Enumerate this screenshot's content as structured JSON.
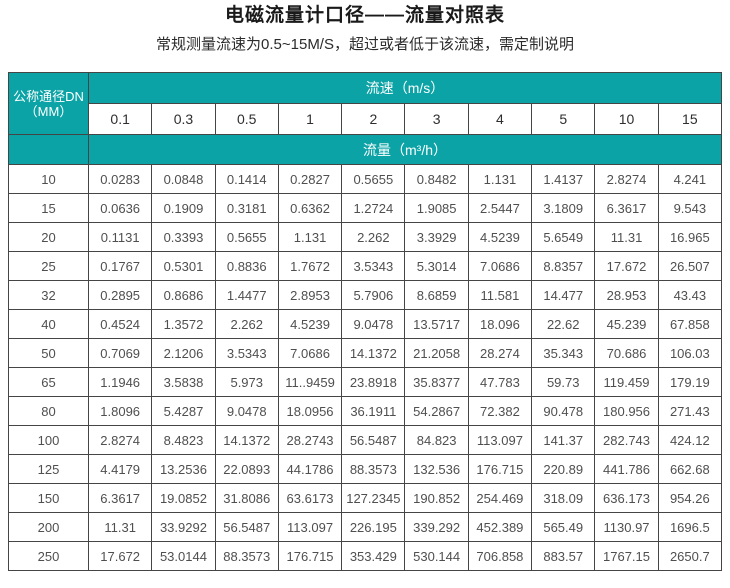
{
  "colors": {
    "header_teal": "#0ba3a6",
    "grid_border": "#454545",
    "body_text": "#4f4f4f"
  },
  "chart_data": {
    "type": "table",
    "title": "电磁流量计口径——流量对照表",
    "subtitle": "常规测量流速为0.5~15M/S，超过或者低于该流速，需定制说明",
    "corner_header_line1": "公称通径DN",
    "corner_header_line2": "（MM）",
    "speed_header": "流速（m/s）",
    "flow_header": "流量（m³/h）",
    "speeds": [
      "0.1",
      "0.3",
      "0.5",
      "1",
      "2",
      "3",
      "4",
      "5",
      "10",
      "15"
    ],
    "rows": [
      {
        "dn": "10",
        "values": [
          "0.0283",
          "0.0848",
          "0.1414",
          "0.2827",
          "0.5655",
          "0.8482",
          "1.131",
          "1.4137",
          "2.8274",
          "4.241"
        ]
      },
      {
        "dn": "15",
        "values": [
          "0.0636",
          "0.1909",
          "0.3181",
          "0.6362",
          "1.2724",
          "1.9085",
          "2.5447",
          "3.1809",
          "6.3617",
          "9.543"
        ]
      },
      {
        "dn": "20",
        "values": [
          "0.1131",
          "0.3393",
          "0.5655",
          "1.131",
          "2.262",
          "3.3929",
          "4.5239",
          "5.6549",
          "11.31",
          "16.965"
        ]
      },
      {
        "dn": "25",
        "values": [
          "0.1767",
          "0.5301",
          "0.8836",
          "1.7672",
          "3.5343",
          "5.3014",
          "7.0686",
          "8.8357",
          "17.672",
          "26.507"
        ]
      },
      {
        "dn": "32",
        "values": [
          "0.2895",
          "0.8686",
          "1.4477",
          "2.8953",
          "5.7906",
          "8.6859",
          "11.581",
          "14.477",
          "28.953",
          "43.43"
        ]
      },
      {
        "dn": "40",
        "values": [
          "0.4524",
          "1.3572",
          "2.262",
          "4.5239",
          "9.0478",
          "13.5717",
          "18.096",
          "22.62",
          "45.239",
          "67.858"
        ]
      },
      {
        "dn": "50",
        "values": [
          "0.7069",
          "2.1206",
          "3.5343",
          "7.0686",
          "14.1372",
          "21.2058",
          "28.274",
          "35.343",
          "70.686",
          "106.03"
        ]
      },
      {
        "dn": "65",
        "values": [
          "1.1946",
          "3.5838",
          "5.973",
          "11..9459",
          "23.8918",
          "35.8377",
          "47.783",
          "59.73",
          "119.459",
          "179.19"
        ]
      },
      {
        "dn": "80",
        "values": [
          "1.8096",
          "5.4287",
          "9.0478",
          "18.0956",
          "36.1911",
          "54.2867",
          "72.382",
          "90.478",
          "180.956",
          "271.43"
        ]
      },
      {
        "dn": "100",
        "values": [
          "2.8274",
          "8.4823",
          "14.1372",
          "28.2743",
          "56.5487",
          "84.823",
          "113.097",
          "141.37",
          "282.743",
          "424.12"
        ]
      },
      {
        "dn": "125",
        "values": [
          "4.4179",
          "13.2536",
          "22.0893",
          "44.1786",
          "88.3573",
          "132.536",
          "176.715",
          "220.89",
          "441.786",
          "662.68"
        ]
      },
      {
        "dn": "150",
        "values": [
          "6.3617",
          "19.0852",
          "31.8086",
          "63.6173",
          "127.2345",
          "190.852",
          "254.469",
          "318.09",
          "636.173",
          "954.26"
        ]
      },
      {
        "dn": "200",
        "values": [
          "11.31",
          "33.9292",
          "56.5487",
          "113.097",
          "226.195",
          "339.292",
          "452.389",
          "565.49",
          "1130.97",
          "1696.5"
        ]
      },
      {
        "dn": "250",
        "values": [
          "17.672",
          "53.0144",
          "88.3573",
          "176.715",
          "353.429",
          "530.144",
          "706.858",
          "883.57",
          "1767.15",
          "2650.7"
        ]
      }
    ]
  }
}
